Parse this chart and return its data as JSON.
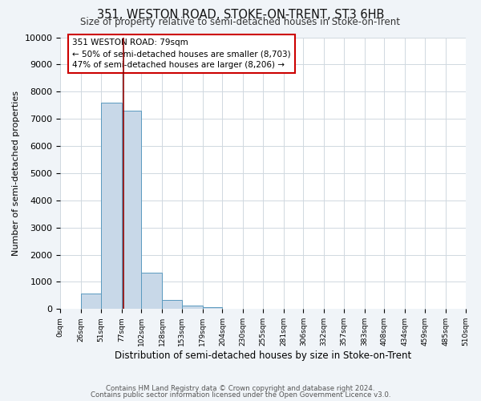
{
  "title": "351, WESTON ROAD, STOKE-ON-TRENT, ST3 6HB",
  "subtitle": "Size of property relative to semi-detached houses in Stoke-on-Trent",
  "xlabel": "Distribution of semi-detached houses by size in Stoke-on-Trent",
  "ylabel": "Number of semi-detached properties",
  "bar_edges": [
    0,
    26,
    51,
    77,
    102,
    128,
    153,
    179,
    204,
    230,
    255,
    281,
    306,
    332,
    357,
    383,
    408,
    434,
    459,
    485,
    510
  ],
  "bar_heights": [
    0,
    560,
    7600,
    7300,
    1330,
    330,
    130,
    80,
    0,
    0,
    0,
    0,
    0,
    0,
    0,
    0,
    0,
    0,
    0,
    0
  ],
  "bar_color": "#c8d8e8",
  "bar_edge_color": "#5a9abf",
  "property_value": 79,
  "vline_color": "#8b0000",
  "annotation_line1": "351 WESTON ROAD: 79sqm",
  "annotation_line2": "← 50% of semi-detached houses are smaller (8,703)",
  "annotation_line3": "47% of semi-detached houses are larger (8,206) →",
  "annotation_box_color": "#cc0000",
  "ylim": [
    0,
    10000
  ],
  "yticks": [
    0,
    1000,
    2000,
    3000,
    4000,
    5000,
    6000,
    7000,
    8000,
    9000,
    10000
  ],
  "xtick_labels": [
    "0sqm",
    "26sqm",
    "51sqm",
    "77sqm",
    "102sqm",
    "128sqm",
    "153sqm",
    "179sqm",
    "204sqm",
    "230sqm",
    "255sqm",
    "281sqm",
    "306sqm",
    "332sqm",
    "357sqm",
    "383sqm",
    "408sqm",
    "434sqm",
    "459sqm",
    "485sqm",
    "510sqm"
  ],
  "footnote1": "Contains HM Land Registry data © Crown copyright and database right 2024.",
  "footnote2": "Contains public sector information licensed under the Open Government Licence v3.0.",
  "background_color": "#f0f4f8",
  "plot_bg_color": "#ffffff"
}
